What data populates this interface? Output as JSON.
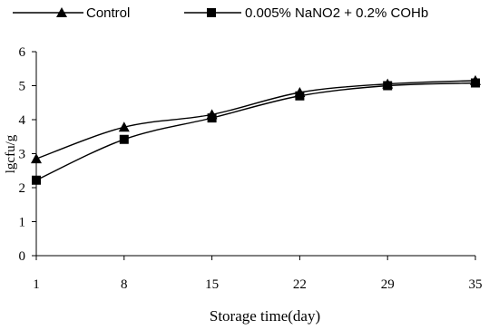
{
  "chart_data": {
    "type": "line",
    "title": "",
    "xlabel": "Storage time(day)",
    "ylabel": "lgcfu/g",
    "x": [
      1,
      8,
      15,
      22,
      29,
      35
    ],
    "xticks": [
      "1",
      "8",
      "15",
      "22",
      "29",
      "35"
    ],
    "ylim": [
      0,
      6
    ],
    "yticks": [
      "0",
      "1",
      "2",
      "3",
      "4",
      "5",
      "6"
    ],
    "grid": false,
    "legend_position": "top",
    "series": [
      {
        "name": "Control",
        "marker": "triangle",
        "color": "#000000",
        "values": [
          2.85,
          3.78,
          4.15,
          4.8,
          5.05,
          5.15
        ]
      },
      {
        "name": "0.005% NaNO2 + 0.2% COHb",
        "marker": "square",
        "color": "#000000",
        "values": [
          2.22,
          3.42,
          4.05,
          4.7,
          5.0,
          5.08
        ]
      }
    ]
  }
}
